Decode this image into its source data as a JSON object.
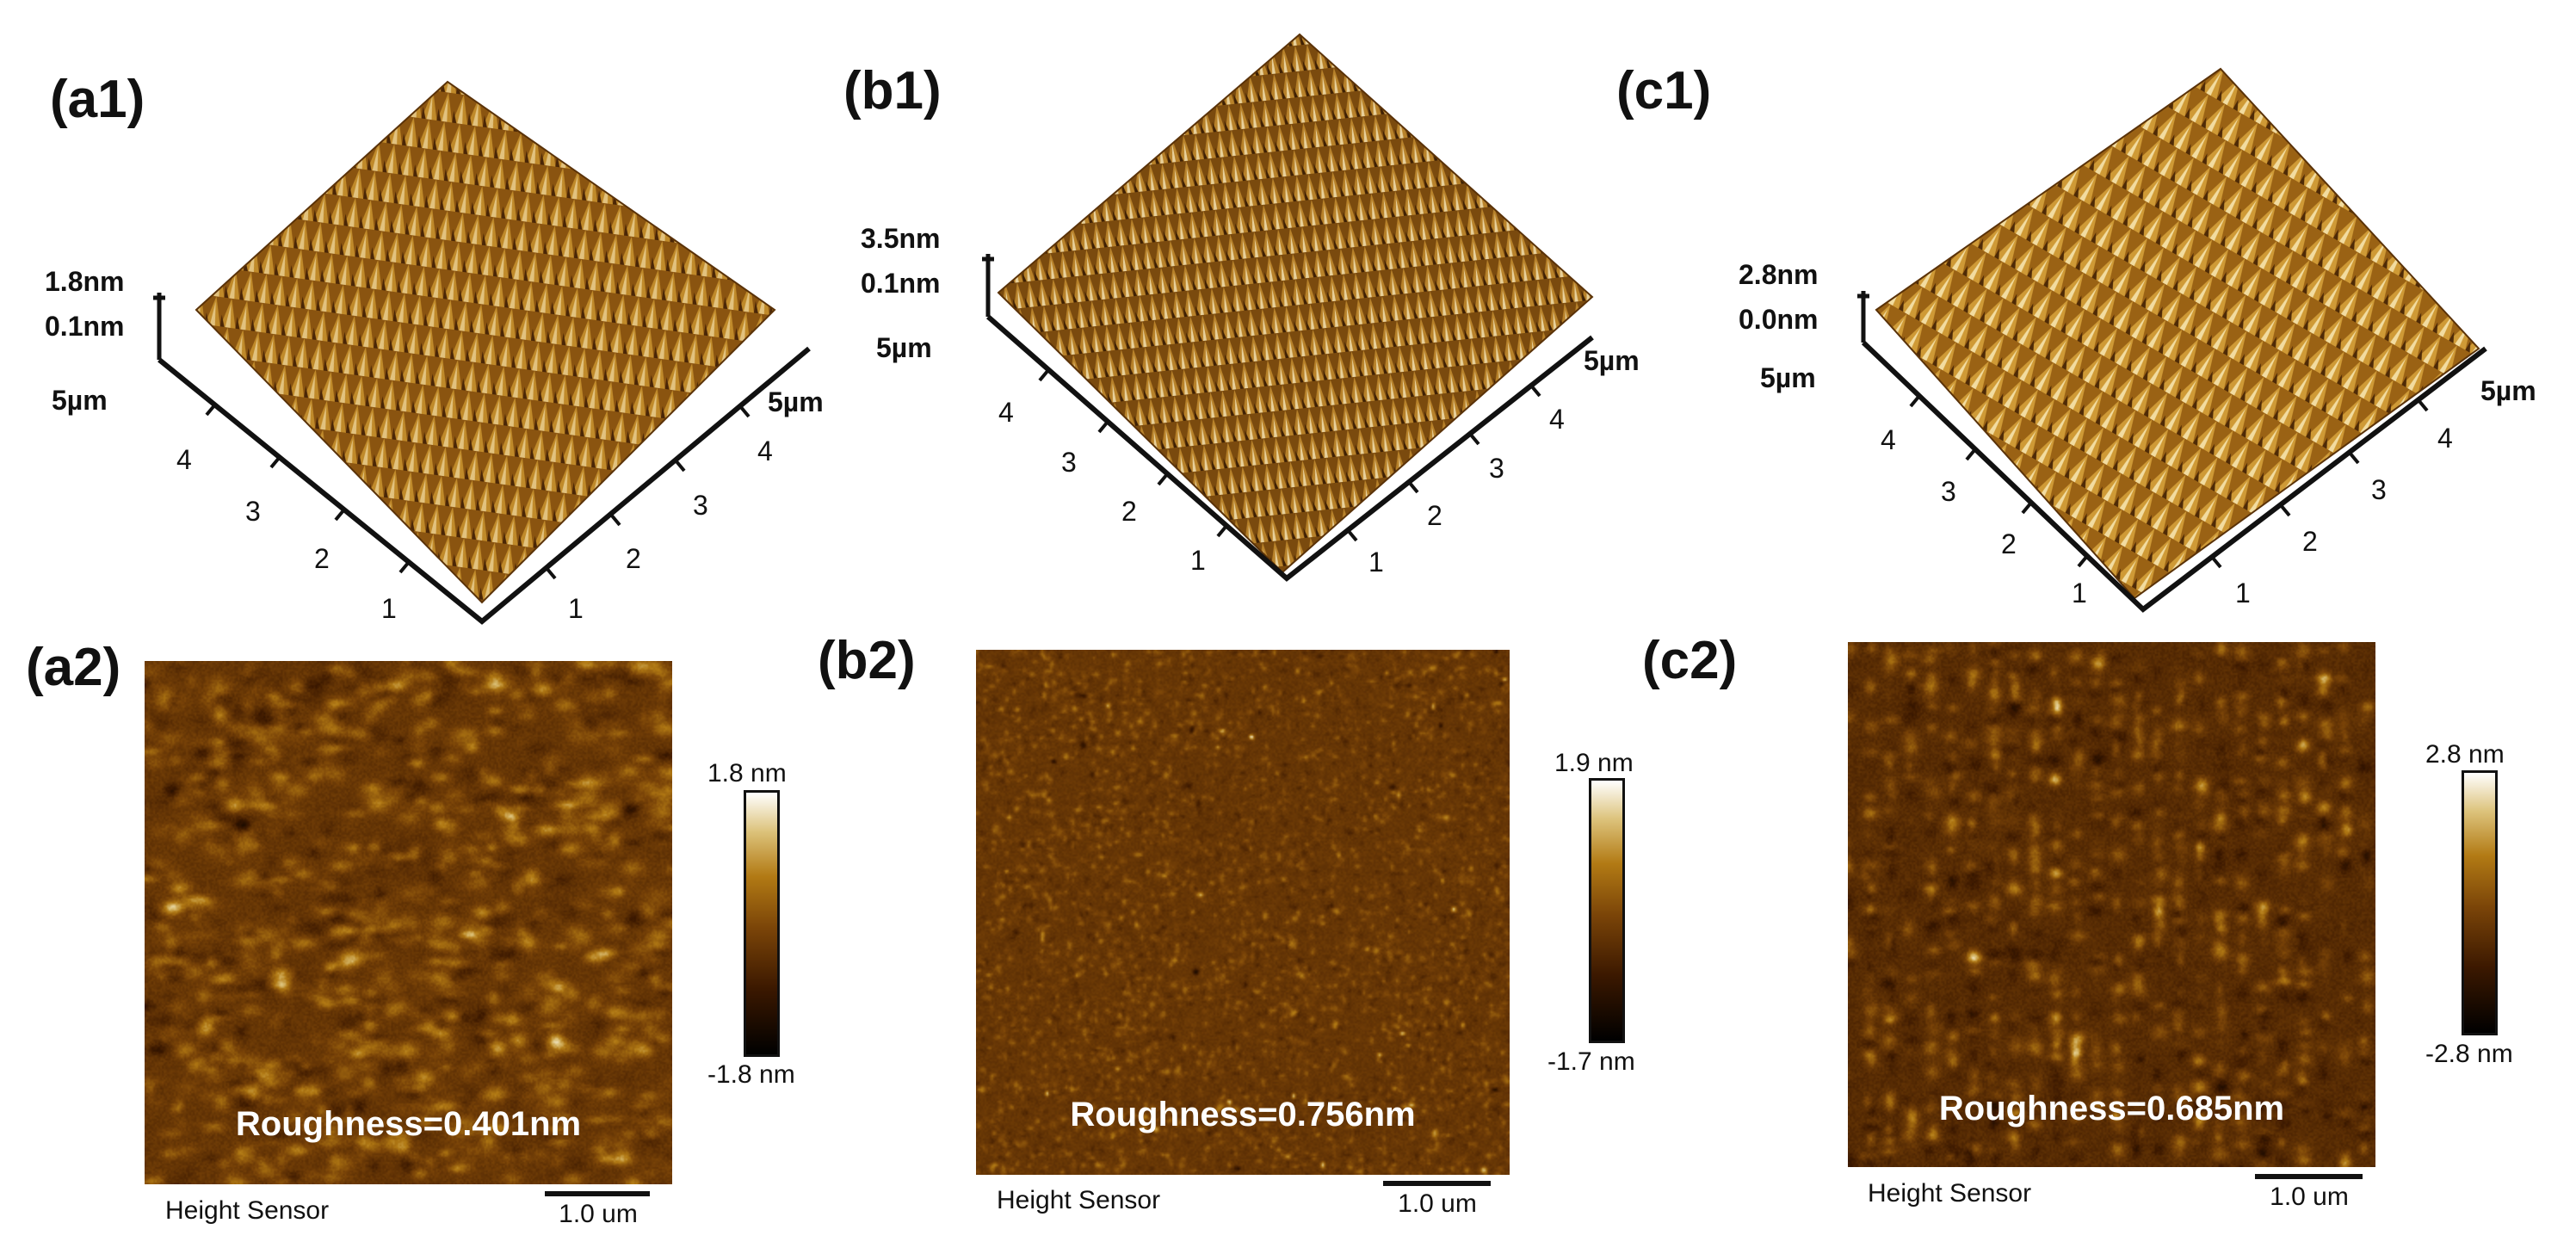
{
  "panels": {
    "a1": {
      "label": "(a1)",
      "z_top": "1.8nm",
      "z_bottom": "0.1nm",
      "x_max": "5µm",
      "y_max": "5µm",
      "ticks": [
        "1",
        "2",
        "3",
        "4"
      ]
    },
    "b1": {
      "label": "(b1)",
      "z_top": "3.5nm",
      "z_bottom": "0.1nm",
      "x_max": "5µm",
      "y_max": "5µm",
      "ticks": [
        "1",
        "2",
        "3",
        "4"
      ]
    },
    "c1": {
      "label": "(c1)",
      "z_top": "2.8nm",
      "z_bottom": "0.0nm",
      "x_max": "5µm",
      "y_max": "5µm",
      "ticks": [
        "1",
        "2",
        "3",
        "4"
      ]
    },
    "a2": {
      "label": "(a2)",
      "roughness": "Roughness=0.401nm",
      "sensor": "Height Sensor",
      "scale": "1.0 um",
      "cbar_max": "1.8 nm",
      "cbar_min": "-1.8 nm"
    },
    "b2": {
      "label": "(b2)",
      "roughness": "Roughness=0.756nm",
      "sensor": "Height Sensor",
      "scale": "1.0 um",
      "cbar_max": "1.9 nm",
      "cbar_min": "-1.7 nm"
    },
    "c2": {
      "label": "(c2)",
      "roughness": "Roughness=0.685nm",
      "sensor": "Height Sensor",
      "scale": "1.0 um",
      "cbar_max": "2.8 nm",
      "cbar_min": "-2.8 nm"
    }
  },
  "colors": {
    "afm_dark": "#3b1800",
    "afm_mid": "#a86c14",
    "afm_light": "#f0dc9a"
  }
}
